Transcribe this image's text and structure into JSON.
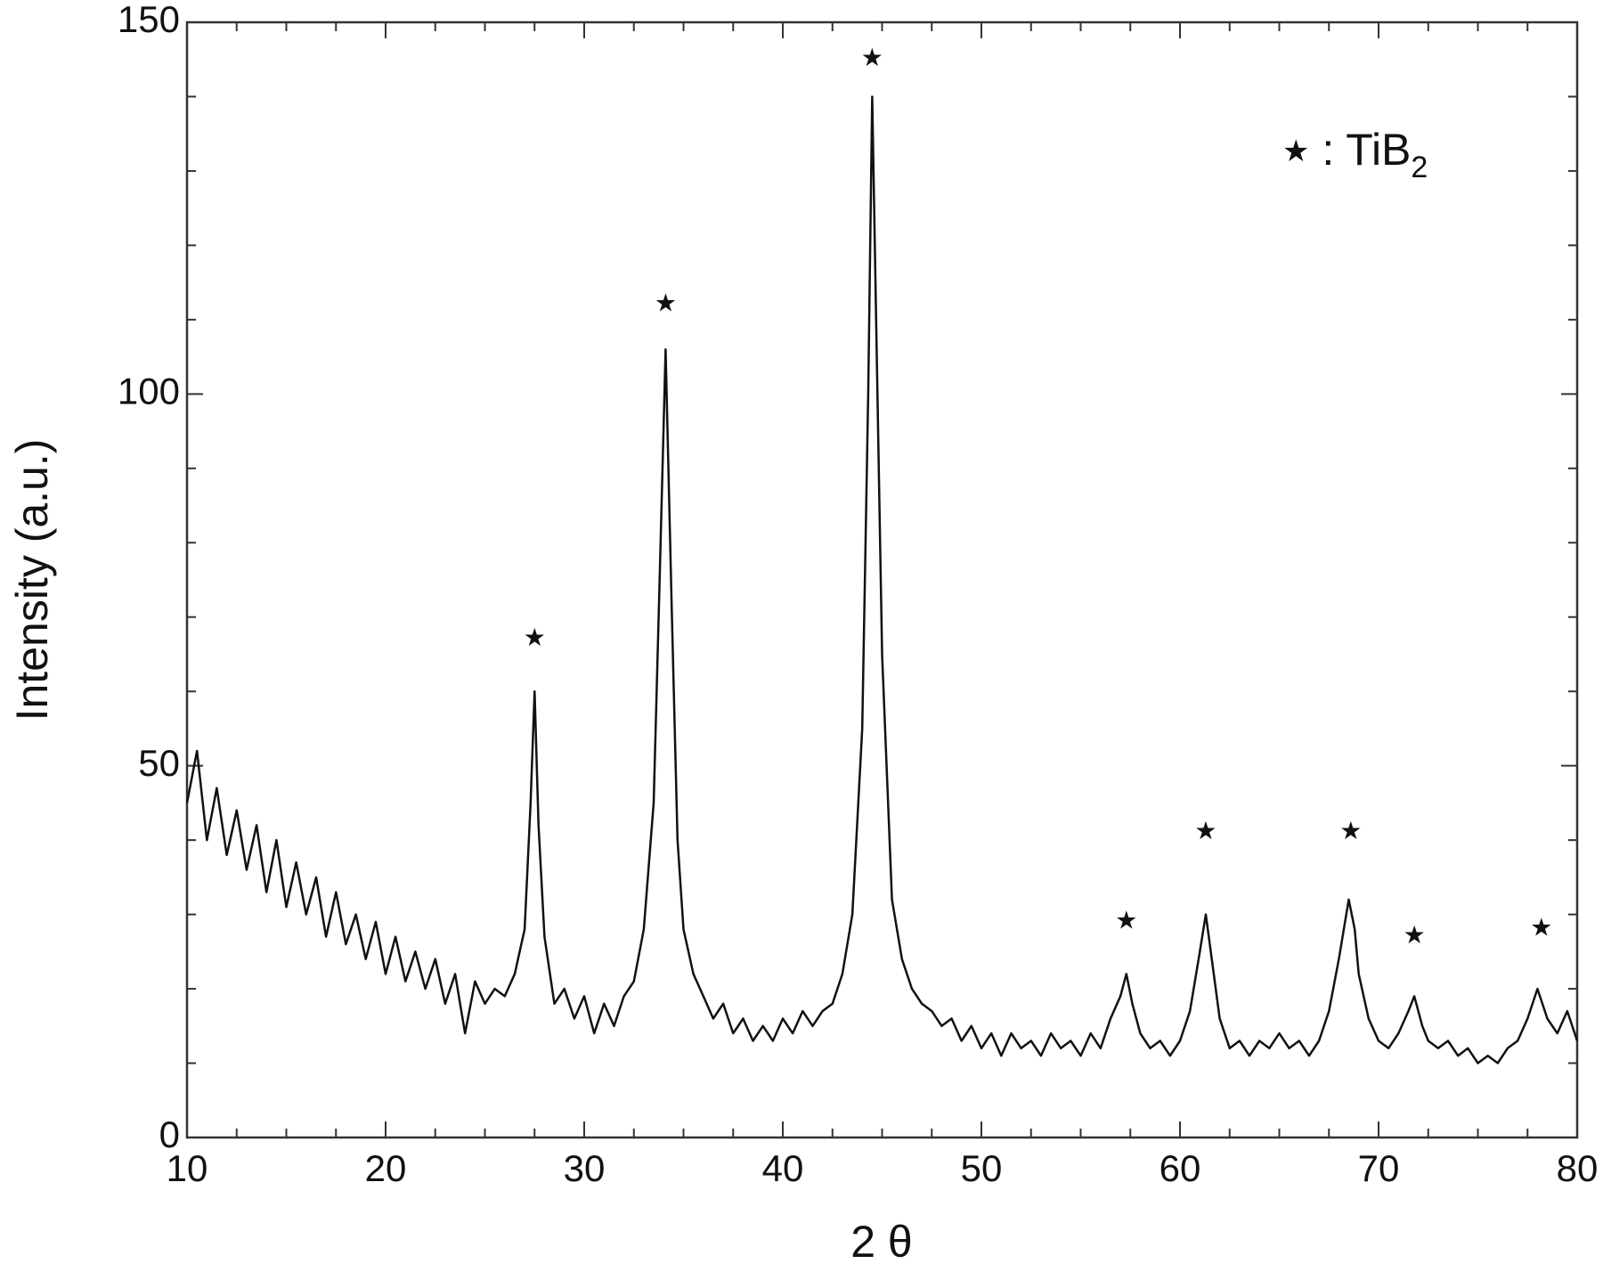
{
  "chart_data": {
    "type": "line",
    "x_label": "2 θ",
    "y_label": "Intensity (a.u.)",
    "xlim": [
      10,
      80
    ],
    "ylim": [
      0,
      150
    ],
    "xticks": [
      10,
      20,
      30,
      40,
      50,
      60,
      70,
      80
    ],
    "yticks": [
      0,
      50,
      100,
      150
    ],
    "xminorticks": [
      12.5,
      15,
      17.5,
      22.5,
      25,
      27.5,
      32.5,
      35,
      37.5,
      42.5,
      45,
      47.5,
      52.5,
      55,
      57.5,
      62.5,
      65,
      67.5,
      72.5,
      75,
      77.5
    ],
    "yminorticks": [
      10,
      20,
      30,
      40,
      60,
      70,
      80,
      90,
      110,
      120,
      130,
      140
    ],
    "color": "#111111",
    "x": [
      10,
      10.5,
      11,
      11.5,
      12,
      12.5,
      13,
      13.5,
      14,
      14.5,
      15,
      15.5,
      16,
      16.5,
      17,
      17.5,
      18,
      18.5,
      19,
      19.5,
      20,
      20.5,
      21,
      21.5,
      22,
      22.5,
      23,
      23.5,
      24,
      24.5,
      25,
      25.5,
      26,
      26.5,
      27,
      27.3,
      27.5,
      27.7,
      28,
      28.5,
      29,
      29.5,
      30,
      30.5,
      31,
      31.5,
      32,
      32.5,
      33,
      33.5,
      33.8,
      34.1,
      34.4,
      34.7,
      35,
      35.5,
      36,
      36.5,
      37,
      37.5,
      38,
      38.5,
      39,
      39.5,
      40,
      40.5,
      41,
      41.5,
      42,
      42.5,
      43,
      43.5,
      44,
      44.3,
      44.5,
      44.7,
      45,
      45.5,
      46,
      46.5,
      47,
      47.5,
      48,
      48.5,
      49,
      49.5,
      50,
      50.5,
      51,
      51.5,
      52,
      52.5,
      53,
      53.5,
      54,
      54.5,
      55,
      55.5,
      56,
      56.5,
      57,
      57.3,
      57.6,
      58,
      58.5,
      59,
      59.5,
      60,
      60.5,
      61,
      61.3,
      61.6,
      62,
      62.5,
      63,
      63.5,
      64,
      64.5,
      65,
      65.5,
      66,
      66.5,
      67,
      67.5,
      68,
      68.5,
      68.8,
      69,
      69.5,
      70,
      70.5,
      71,
      71.5,
      71.8,
      72.2,
      72.5,
      73,
      73.5,
      74,
      74.5,
      75,
      75.5,
      76,
      76.5,
      77,
      77.5,
      78,
      78.5,
      79,
      79.5,
      80
    ],
    "values": [
      45,
      52,
      40,
      47,
      38,
      44,
      36,
      42,
      33,
      40,
      31,
      37,
      30,
      35,
      27,
      33,
      26,
      30,
      24,
      29,
      22,
      27,
      21,
      25,
      20,
      24,
      18,
      22,
      14,
      21,
      18,
      20,
      19,
      22,
      28,
      45,
      60,
      42,
      27,
      18,
      20,
      16,
      19,
      14,
      18,
      15,
      19,
      21,
      28,
      45,
      75,
      106,
      72,
      40,
      28,
      22,
      19,
      16,
      18,
      14,
      16,
      13,
      15,
      13,
      16,
      14,
      17,
      15,
      17,
      18,
      22,
      30,
      55,
      100,
      140,
      110,
      65,
      32,
      24,
      20,
      18,
      17,
      15,
      16,
      13,
      15,
      12,
      14,
      11,
      14,
      12,
      13,
      11,
      14,
      12,
      13,
      11,
      14,
      12,
      16,
      19,
      22,
      18,
      14,
      12,
      13,
      11,
      13,
      17,
      25,
      30,
      24,
      16,
      12,
      13,
      11,
      13,
      12,
      14,
      12,
      13,
      11,
      13,
      17,
      24,
      32,
      28,
      22,
      16,
      13,
      12,
      14,
      17,
      19,
      15,
      13,
      12,
      13,
      11,
      12,
      10,
      11,
      10,
      12,
      13,
      16,
      20,
      16,
      14,
      17,
      13
    ],
    "peak_markers": {
      "x": [
        27.5,
        34.1,
        44.5,
        57.3,
        61.3,
        68.6,
        71.8,
        78.2
      ],
      "y": [
        67,
        112,
        145,
        29,
        41,
        41,
        27,
        28
      ]
    },
    "legend": {
      "marker": "★",
      "label": " : TiB",
      "subscript": "2"
    }
  }
}
